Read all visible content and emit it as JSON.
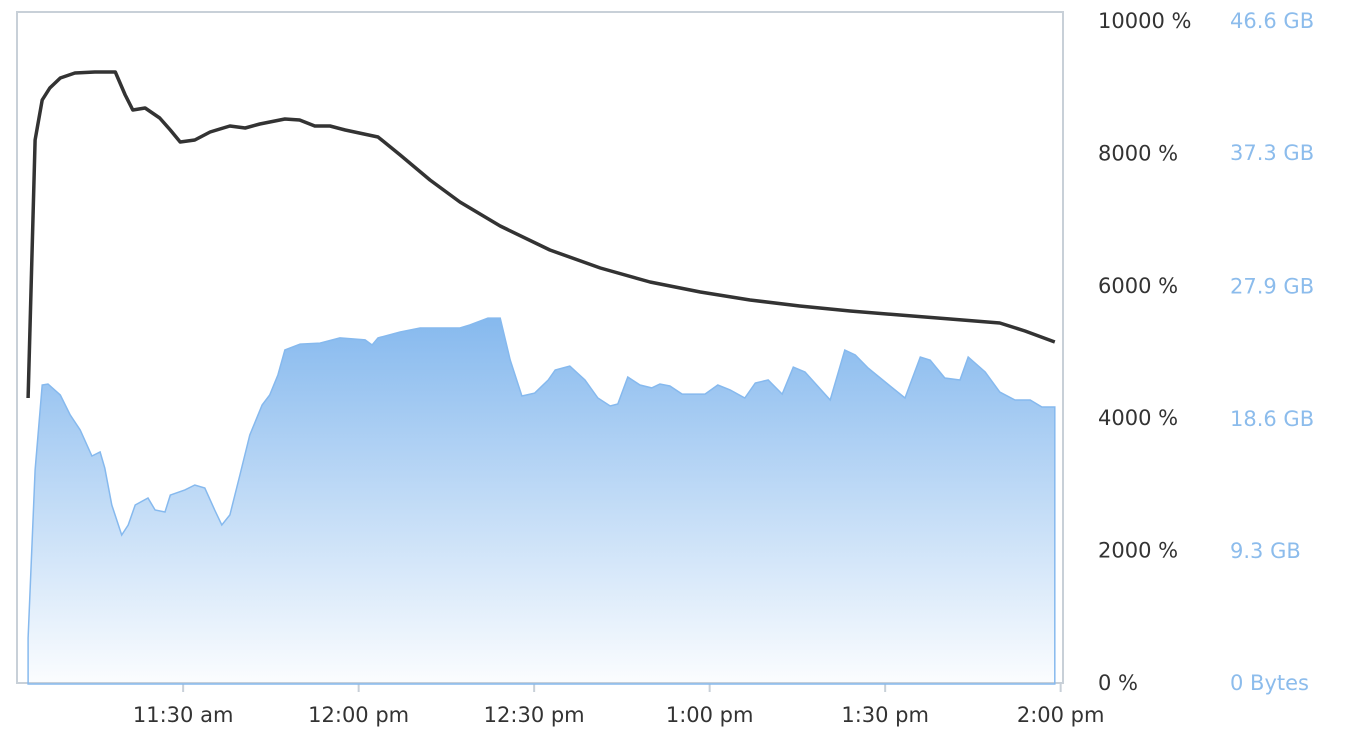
{
  "chart_data": {
    "type": "line",
    "xlim": [
      661.6,
      840.4
    ],
    "xticks": [
      {
        "value": 690,
        "label": "11:30 am"
      },
      {
        "value": 720,
        "label": "12:00 pm"
      },
      {
        "value": 750,
        "label": "12:30 pm"
      },
      {
        "value": 780,
        "label": "1:00 pm"
      },
      {
        "value": 810,
        "label": "1:30 pm"
      },
      {
        "value": 840,
        "label": "2:00 pm"
      }
    ],
    "ylim": [
      0,
      10000
    ],
    "yticks": [
      {
        "value": 0,
        "label": "0 %"
      },
      {
        "value": 2000,
        "label": "2000 %"
      },
      {
        "value": 4000,
        "label": "4000 %"
      },
      {
        "value": 6000,
        "label": "6000 %"
      },
      {
        "value": 8000,
        "label": "8000 %"
      },
      {
        "value": 10000,
        "label": "10000 %"
      }
    ],
    "y2lim": [
      0,
      46.6
    ],
    "y2ticks": [
      {
        "value": 0,
        "label": "0 Bytes"
      },
      {
        "value": 9.3,
        "label": "9.3 GB"
      },
      {
        "value": 18.6,
        "label": "18.6 GB"
      },
      {
        "value": 27.9,
        "label": "27.9 GB"
      },
      {
        "value": 37.3,
        "label": "37.3 GB"
      },
      {
        "value": 46.6,
        "label": "46.6 GB"
      }
    ],
    "grid": false,
    "series": [
      {
        "type": "area",
        "axis": "y2",
        "color": "#86b9ee",
        "x": [
          663.5,
          664.7,
          665.9,
          666.9,
          669.0,
          670.7,
          672.4,
          674.4,
          675.8,
          676.6,
          677.8,
          679.5,
          680.6,
          681.8,
          684.0,
          685.2,
          686.9,
          687.8,
          690.3,
          692.0,
          693.7,
          695.4,
          696.6,
          698.0,
          699.7,
          701.4,
          703.5,
          704.8,
          706.2,
          707.4,
          710.0,
          713.4,
          716.8,
          721.1,
          722.3,
          723.3,
          727.1,
          730.5,
          737.3,
          739.0,
          742.1,
          744.2,
          745.9,
          747.9,
          750.1,
          752.4,
          753.6,
          756.1,
          758.7,
          760.9,
          763.0,
          764.3,
          766.0,
          768.1,
          770.1,
          771.5,
          773.2,
          775.3,
          779.2,
          781.4,
          783.5,
          786.0,
          787.8,
          790.0,
          792.4,
          794.3,
          796.3,
          800.6,
          803.1,
          804.9,
          807.1,
          810.0,
          813.4,
          816.0,
          817.7,
          820.2,
          822.8,
          824.2,
          827.1,
          829.6,
          832.2,
          834.8,
          836.8,
          839.0
        ],
        "values": [
          3.24,
          15.06,
          21.05,
          21.12,
          20.34,
          18.94,
          17.88,
          16.05,
          16.33,
          15.2,
          12.6,
          10.49,
          11.19,
          12.6,
          13.09,
          12.25,
          12.11,
          13.3,
          13.66,
          14.01,
          13.8,
          12.25,
          11.19,
          11.9,
          14.71,
          17.53,
          19.64,
          20.34,
          21.75,
          23.51,
          23.93,
          24.0,
          24.36,
          24.22,
          23.86,
          24.36,
          24.78,
          25.06,
          25.06,
          25.27,
          25.76,
          25.76,
          22.81,
          20.27,
          20.48,
          21.4,
          22.1,
          22.38,
          21.4,
          20.13,
          19.57,
          19.71,
          21.61,
          21.05,
          20.84,
          21.12,
          20.98,
          20.41,
          20.41,
          21.05,
          20.7,
          20.13,
          21.19,
          21.4,
          20.41,
          22.31,
          21.96,
          19.99,
          23.51,
          23.16,
          22.24,
          21.26,
          20.13,
          23.02,
          22.8,
          21.54,
          21.4,
          23.02,
          21.96,
          20.55,
          19.99,
          19.99,
          19.5,
          19.5
        ]
      },
      {
        "type": "line",
        "color": "#333333",
        "x": [
          663.5,
          664.7,
          665.9,
          667.2,
          669.0,
          671.5,
          674.9,
          678.4,
          680.1,
          681.4,
          683.5,
          686.0,
          687.8,
          689.5,
          692.0,
          694.6,
          698.0,
          700.6,
          703.1,
          707.4,
          709.9,
          712.5,
          715.1,
          717.7,
          723.3,
          727.1,
          732.2,
          737.3,
          744.2,
          752.7,
          761.3,
          769.8,
          778.4,
          786.9,
          795.4,
          804.0,
          812.5,
          821.1,
          829.6,
          833.9,
          839.0
        ],
        "values": [
          4320,
          8218,
          8822,
          9003,
          9154,
          9230,
          9245,
          9245,
          8897,
          8671,
          8701,
          8550,
          8369,
          8187,
          8218,
          8338,
          8429,
          8399,
          8459,
          8535,
          8520,
          8429,
          8429,
          8369,
          8263,
          7991,
          7613,
          7281,
          6918,
          6556,
          6284,
          6073,
          5921,
          5801,
          5710,
          5634,
          5574,
          5514,
          5453,
          5332,
          5166
        ]
      }
    ]
  }
}
